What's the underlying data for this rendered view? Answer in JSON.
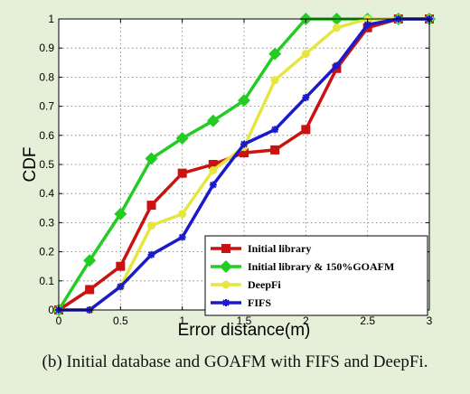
{
  "caption": "(b) Initial database and GOAFM with FIFS and DeepFi.",
  "chart_data": {
    "type": "line",
    "title": "",
    "xlabel": "Error distance(m)",
    "ylabel": "CDF",
    "xlim": [
      0,
      3
    ],
    "ylim": [
      0,
      1
    ],
    "xticks": [
      0,
      0.5,
      1,
      1.5,
      2,
      2.5,
      3
    ],
    "xtick_labels": [
      "0",
      "0.5",
      "1",
      "1.5",
      "2",
      "2.5",
      "3"
    ],
    "yticks": [
      0,
      0.1,
      0.2,
      0.3,
      0.4,
      0.5,
      0.6,
      0.7,
      0.8,
      0.9,
      1
    ],
    "ytick_labels": [
      "0",
      "0.1",
      "0.2",
      "0.3",
      "0.4",
      "0.5",
      "0.6",
      "0.7",
      "0.8",
      "0.9",
      "1"
    ],
    "grid": true,
    "legend_position": "bottom-right",
    "x": [
      0,
      0.25,
      0.5,
      0.75,
      1,
      1.25,
      1.5,
      1.75,
      2,
      2.25,
      2.5,
      2.75,
      3
    ],
    "series": [
      {
        "name": "Initial library",
        "color": "#cc1111",
        "marker": "square",
        "values": [
          0,
          0.07,
          0.15,
          0.36,
          0.47,
          0.5,
          0.54,
          0.55,
          0.62,
          0.83,
          0.97,
          1.0,
          1.0
        ]
      },
      {
        "name": "Initial library & 150%GOAFM",
        "color": "#22cc22",
        "marker": "diamond",
        "values": [
          0,
          0.17,
          0.33,
          0.52,
          0.59,
          0.65,
          0.72,
          0.88,
          1.0,
          1.0,
          1.0,
          1.0,
          1.0
        ]
      },
      {
        "name": "DeepFi",
        "color": "#e6e640",
        "marker": "circle",
        "values": [
          0,
          0,
          0.08,
          0.29,
          0.33,
          0.48,
          0.56,
          0.79,
          0.88,
          0.97,
          1.0,
          1.0,
          1.0
        ]
      },
      {
        "name": "FIFS",
        "color": "#1a1acc",
        "marker": "star",
        "values": [
          0,
          0,
          0.08,
          0.19,
          0.25,
          0.43,
          0.57,
          0.62,
          0.73,
          0.84,
          0.98,
          1.0,
          1.0
        ]
      }
    ]
  }
}
